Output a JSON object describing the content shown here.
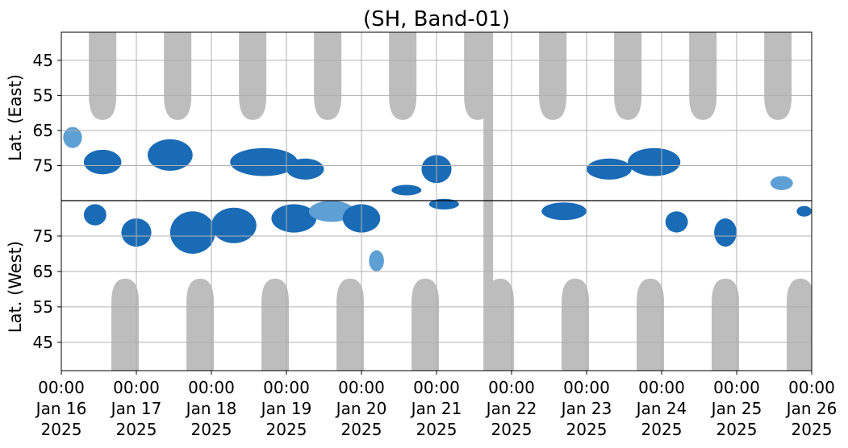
{
  "chart_data": {
    "type": "heatmap",
    "title": "(SH, Band-01)",
    "ylabel_top": "Lat. (East)",
    "ylabel_bottom": "Lat. (West)",
    "y_ticks_top": [
      "45",
      "55",
      "65",
      "75"
    ],
    "y_ticks_bottom": [
      "75",
      "65",
      "55",
      "45"
    ],
    "x_ticks": [
      {
        "time": "00:00",
        "date": "Jan 16",
        "year": "2025"
      },
      {
        "time": "00:00",
        "date": "Jan 17",
        "year": "2025"
      },
      {
        "time": "00:00",
        "date": "Jan 18",
        "year": "2025"
      },
      {
        "time": "00:00",
        "date": "Jan 19",
        "year": "2025"
      },
      {
        "time": "00:00",
        "date": "Jan 20",
        "year": "2025"
      },
      {
        "time": "00:00",
        "date": "Jan 21",
        "year": "2025"
      },
      {
        "time": "00:00",
        "date": "Jan 22",
        "year": "2025"
      },
      {
        "time": "00:00",
        "date": "Jan 23",
        "year": "2025"
      },
      {
        "time": "00:00",
        "date": "Jan 24",
        "year": "2025"
      },
      {
        "time": "00:00",
        "date": "Jan 25",
        "year": "2025"
      },
      {
        "time": "00:00",
        "date": "Jan 26",
        "year": "2025"
      }
    ],
    "x_range": [
      "2025-01-16 00:00",
      "2025-01-26 00:00"
    ],
    "grid": true,
    "colors": {
      "strong": "#1a6bb5",
      "light": "#5fa0d4",
      "nodata": "#bdbdbd",
      "divider": "#000000"
    },
    "nodata_top_arcs": [
      0.55,
      1.55,
      2.55,
      3.55,
      4.55,
      5.55,
      6.55,
      7.55,
      8.55,
      9.55
    ],
    "nodata_bottom_arcs": [
      0.85,
      1.85,
      2.85,
      3.85,
      4.85,
      5.85,
      6.85,
      7.85,
      8.85,
      9.85
    ],
    "nodata_column": 5.69,
    "echo_blobs_top": [
      {
        "day": 0.15,
        "lat": 67,
        "w": 0.25,
        "h": 6,
        "strength": "light"
      },
      {
        "day": 0.55,
        "lat": 74,
        "w": 0.5,
        "h": 7,
        "strength": "strong"
      },
      {
        "day": 1.45,
        "lat": 72,
        "w": 0.6,
        "h": 9,
        "strength": "strong"
      },
      {
        "day": 2.7,
        "lat": 74,
        "w": 0.9,
        "h": 8,
        "strength": "strong"
      },
      {
        "day": 3.25,
        "lat": 76,
        "w": 0.5,
        "h": 6,
        "strength": "strong"
      },
      {
        "day": 4.6,
        "lat": 82,
        "w": 0.4,
        "h": 3,
        "strength": "strong"
      },
      {
        "day": 5.0,
        "lat": 76,
        "w": 0.4,
        "h": 8,
        "strength": "strong"
      },
      {
        "day": 7.3,
        "lat": 76,
        "w": 0.6,
        "h": 6,
        "strength": "strong"
      },
      {
        "day": 7.9,
        "lat": 74,
        "w": 0.7,
        "h": 8,
        "strength": "strong"
      },
      {
        "day": 9.6,
        "lat": 80,
        "w": 0.3,
        "h": 4,
        "strength": "light"
      }
    ],
    "echo_blobs_bottom": [
      {
        "day": 0.45,
        "lat": 81,
        "w": 0.3,
        "h": 6,
        "strength": "strong"
      },
      {
        "day": 1.0,
        "lat": 76,
        "w": 0.4,
        "h": 8,
        "strength": "strong"
      },
      {
        "day": 1.75,
        "lat": 76,
        "w": 0.6,
        "h": 12,
        "strength": "strong"
      },
      {
        "day": 2.3,
        "lat": 78,
        "w": 0.6,
        "h": 10,
        "strength": "strong"
      },
      {
        "day": 3.1,
        "lat": 80,
        "w": 0.6,
        "h": 8,
        "strength": "strong"
      },
      {
        "day": 3.6,
        "lat": 82,
        "w": 0.6,
        "h": 6,
        "strength": "light"
      },
      {
        "day": 4.0,
        "lat": 80,
        "w": 0.5,
        "h": 8,
        "strength": "strong"
      },
      {
        "day": 4.2,
        "lat": 68,
        "w": 0.2,
        "h": 6,
        "strength": "light"
      },
      {
        "day": 5.1,
        "lat": 84,
        "w": 0.4,
        "h": 3,
        "strength": "strong"
      },
      {
        "day": 6.7,
        "lat": 82,
        "w": 0.6,
        "h": 5,
        "strength": "strong"
      },
      {
        "day": 8.2,
        "lat": 79,
        "w": 0.3,
        "h": 6,
        "strength": "strong"
      },
      {
        "day": 8.85,
        "lat": 76,
        "w": 0.3,
        "h": 8,
        "strength": "strong"
      },
      {
        "day": 9.9,
        "lat": 82,
        "w": 0.2,
        "h": 3,
        "strength": "strong"
      }
    ]
  }
}
